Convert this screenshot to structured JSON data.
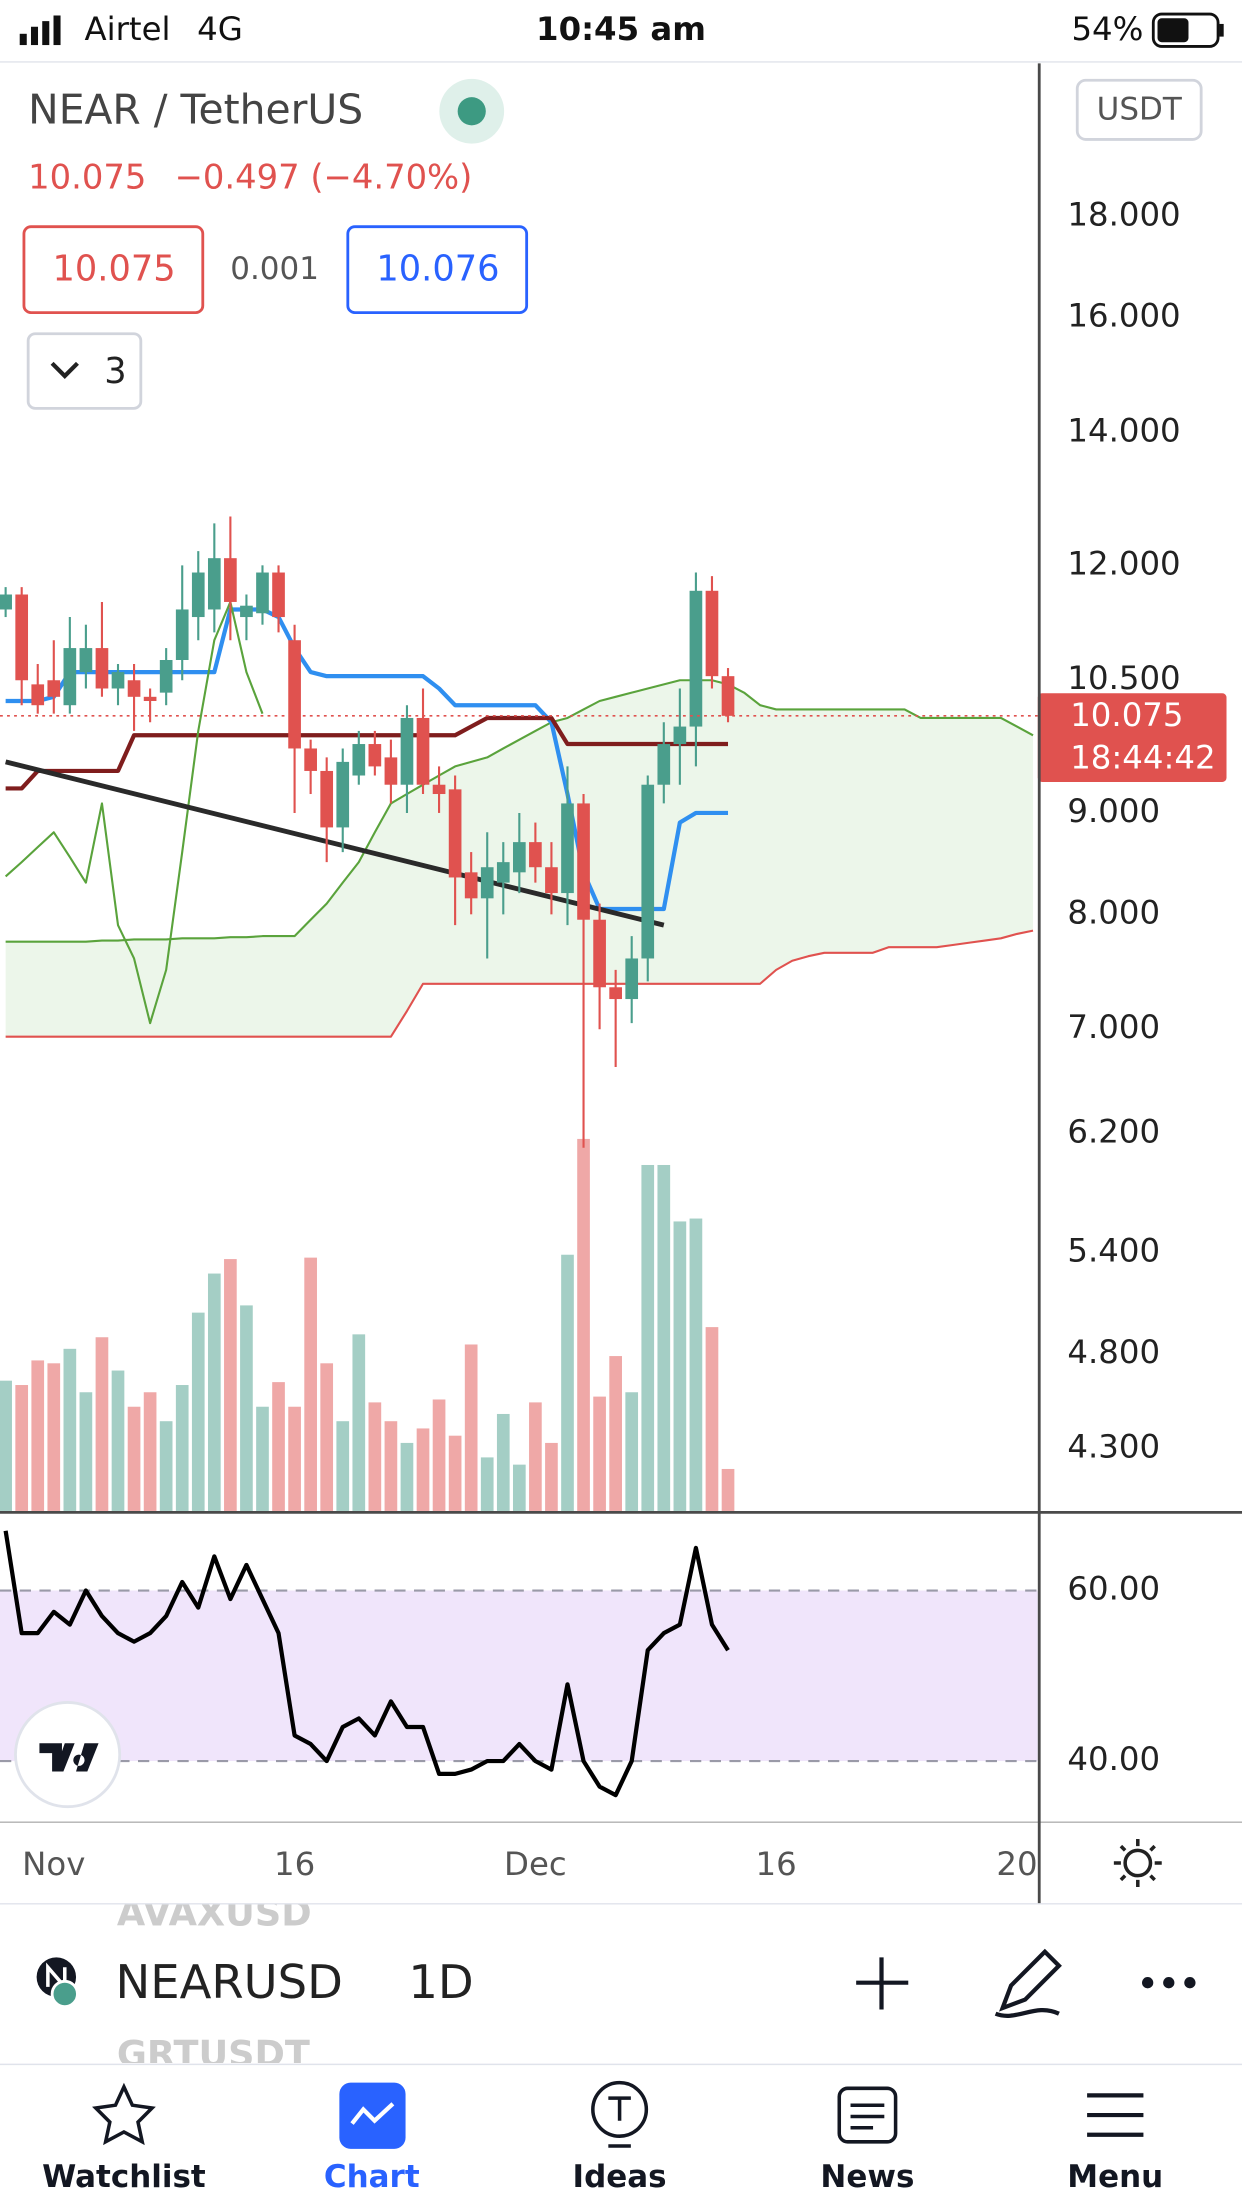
{
  "status_bar": {
    "carrier": "Airtel",
    "network": "4G",
    "time": "10:45 am",
    "battery": "54%"
  },
  "header": {
    "symbol": "NEAR / TetherUS",
    "last": "10.075",
    "change": "−0.497 (−4.70%)",
    "sell": "10.075",
    "spread": "0.001",
    "buy": "10.076",
    "indicators_count": "3",
    "currency": "USDT"
  },
  "chart": {
    "type": "candlestick",
    "log_scale": true,
    "grid": true,
    "ylim": [
      4.0,
      21.5
    ],
    "yticks": [
      {
        "value": 18,
        "label": "18.000"
      },
      {
        "value": 16,
        "label": "16.000"
      },
      {
        "value": 14,
        "label": "14.000"
      },
      {
        "value": 12,
        "label": "12.000"
      },
      {
        "value": 10.5,
        "label": "10.500"
      },
      {
        "value": 9,
        "label": "9.000"
      },
      {
        "value": 8,
        "label": "8.000"
      },
      {
        "value": 7,
        "label": "7.000"
      },
      {
        "value": 6.2,
        "label": "6.200"
      },
      {
        "value": 5.4,
        "label": "5.400"
      },
      {
        "value": 4.8,
        "label": "4.800"
      },
      {
        "value": 4.3,
        "label": "4.300"
      }
    ],
    "xticks": [
      {
        "value": 3,
        "label": "Nov"
      },
      {
        "value": 18,
        "label": "16"
      },
      {
        "value": 33,
        "label": "Dec"
      },
      {
        "value": 48,
        "label": "16"
      },
      {
        "value": 63,
        "label": "20"
      }
    ],
    "up_color": "#4a9e8c",
    "down_color": "#e0524f",
    "open": [
      11.4,
      11.6,
      10.45,
      10.5,
      10.2,
      10.6,
      10.9,
      10.4,
      10.5,
      10.3,
      10.35,
      10.75,
      11.3,
      11.4,
      12.1,
      11.3,
      11.35,
      11.9,
      11.0,
      9.7,
      9.45,
      8.85,
      9.4,
      9.75,
      9.6,
      9.3,
      10.05,
      9.3,
      9.25,
      8.4,
      8.15,
      8.3,
      8.4,
      8.7,
      8.45,
      8.2,
      9.1,
      7.95,
      7.35,
      7.25,
      7.6,
      9.3,
      9.75,
      9.95,
      11.65,
      10.55
    ],
    "high": [
      11.7,
      11.7,
      10.7,
      11.0,
      11.3,
      11.2,
      11.5,
      10.7,
      10.7,
      10.4,
      10.9,
      12.0,
      12.2,
      12.6,
      12.7,
      11.6,
      12.0,
      12.0,
      11.2,
      9.8,
      9.6,
      9.7,
      9.9,
      9.9,
      9.8,
      10.2,
      10.4,
      9.5,
      9.4,
      8.6,
      8.8,
      8.7,
      9.0,
      8.9,
      8.7,
      9.5,
      9.2,
      8.1,
      7.5,
      7.8,
      9.4,
      10.0,
      10.4,
      11.9,
      11.85,
      10.65
    ],
    "low": [
      11.3,
      10.2,
      10.1,
      10.1,
      10.1,
      10.4,
      10.3,
      10.2,
      9.9,
      10.0,
      10.2,
      10.5,
      11.0,
      11.1,
      11.0,
      11.0,
      11.2,
      11.1,
      9.0,
      9.2,
      8.5,
      8.6,
      9.3,
      9.4,
      9.1,
      9.0,
      9.2,
      9.0,
      7.9,
      8.0,
      7.6,
      8.0,
      8.2,
      8.3,
      8.0,
      7.9,
      6.1,
      7.0,
      6.7,
      7.05,
      7.4,
      9.1,
      9.3,
      9.5,
      10.4,
      10.0
    ],
    "close": [
      11.6,
      10.5,
      10.2,
      10.3,
      10.9,
      10.9,
      10.4,
      10.6,
      10.3,
      10.25,
      10.75,
      11.4,
      11.9,
      12.1,
      11.5,
      11.45,
      11.9,
      11.3,
      9.7,
      9.45,
      8.85,
      9.55,
      9.75,
      9.5,
      9.3,
      10.05,
      9.3,
      9.2,
      8.35,
      8.15,
      8.45,
      8.5,
      8.7,
      8.45,
      8.2,
      9.1,
      7.95,
      7.35,
      7.25,
      7.6,
      9.3,
      9.75,
      9.95,
      11.65,
      10.55,
      10.075
    ],
    "volume_lim": [
      0,
      1000
    ],
    "volume": [
      90,
      87,
      104,
      102,
      112,
      82,
      120,
      97,
      72,
      82,
      62,
      87,
      137,
      164,
      174,
      142,
      72,
      89,
      72,
      175,
      102,
      62,
      122,
      75,
      62,
      47,
      57,
      77,
      52,
      115,
      37,
      67,
      32,
      75,
      47,
      177,
      257,
      79,
      107,
      82,
      239,
      239,
      200,
      202,
      127,
      29
    ],
    "lines": [
      {
        "color": "#2f8ff0",
        "values": [
          10.25,
          10.25,
          10.25,
          10.3,
          10.6,
          10.6,
          10.6,
          10.6,
          10.6,
          10.6,
          10.6,
          10.6,
          10.6,
          10.6,
          11.4,
          11.4,
          11.4,
          11.3,
          10.9,
          10.6,
          10.55,
          10.55,
          10.55,
          10.55,
          10.55,
          10.55,
          10.55,
          10.4,
          10.2,
          10.2,
          10.2,
          10.2,
          10.2,
          10.2,
          10.0,
          9.2,
          8.4,
          8.05,
          8.05,
          8.05,
          8.05,
          8.05,
          8.9,
          9.0,
          9.0,
          9.0
        ]
      },
      {
        "color": "#7f1d1d",
        "values": [
          9.26,
          9.26,
          9.45,
          9.45,
          9.45,
          9.45,
          9.45,
          9.45,
          9.85,
          9.85,
          9.85,
          9.85,
          9.85,
          9.85,
          9.85,
          9.85,
          9.85,
          9.85,
          9.85,
          9.85,
          9.85,
          9.85,
          9.85,
          9.85,
          9.85,
          9.85,
          9.85,
          9.85,
          9.85,
          9.95,
          10.05,
          10.05,
          10.05,
          10.05,
          10.05,
          9.75,
          9.75,
          9.75,
          9.75,
          9.75,
          9.75,
          9.75,
          9.75,
          9.75,
          9.75,
          9.75
        ]
      },
      {
        "color": "#5aa33c",
        "values": [
          8.36,
          8.5,
          8.65,
          8.8,
          8.55,
          8.3,
          9.1,
          7.9,
          7.6,
          7.05,
          7.5,
          8.6,
          9.9,
          11.0,
          11.5,
          10.6,
          10.1
        ]
      }
    ],
    "span_a": {
      "color": "#5aa33c",
      "values": [
        7.75,
        7.75,
        7.75,
        7.75,
        7.75,
        7.75,
        7.76,
        7.76,
        7.77,
        7.77,
        7.77,
        7.78,
        7.78,
        7.78,
        7.79,
        7.79,
        7.8,
        7.8,
        7.8,
        7.95,
        8.1,
        8.3,
        8.5,
        8.8,
        9.1,
        9.2,
        9.3,
        9.4,
        9.5,
        9.55,
        9.6,
        9.7,
        9.8,
        9.9,
        10.0,
        10.05,
        10.15,
        10.25,
        10.3,
        10.35,
        10.4,
        10.45,
        10.5,
        10.5,
        10.5,
        10.45,
        10.35,
        10.2,
        10.15,
        10.15,
        10.15,
        10.15,
        10.15,
        10.15,
        10.15,
        10.15,
        10.15,
        10.05,
        10.05,
        10.05,
        10.05,
        10.05,
        10.05,
        9.95,
        9.85
      ]
    },
    "span_b": {
      "color": "#e0524f",
      "values": [
        6.94,
        6.94,
        6.94,
        6.94,
        6.94,
        6.94,
        6.94,
        6.94,
        6.94,
        6.94,
        6.94,
        6.94,
        6.94,
        6.94,
        6.94,
        6.94,
        6.94,
        6.94,
        6.94,
        6.94,
        6.94,
        6.94,
        6.94,
        6.94,
        6.94,
        7.15,
        7.38,
        7.38,
        7.38,
        7.38,
        7.38,
        7.38,
        7.38,
        7.38,
        7.38,
        7.38,
        7.38,
        7.38,
        7.38,
        7.38,
        7.38,
        7.38,
        7.38,
        7.38,
        7.38,
        7.38,
        7.38,
        7.38,
        7.5,
        7.58,
        7.62,
        7.65,
        7.65,
        7.65,
        7.65,
        7.7,
        7.7,
        7.7,
        7.7,
        7.72,
        7.74,
        7.76,
        7.78,
        7.82,
        7.85
      ]
    },
    "cloud_color": "#e9f4e6",
    "trend_line": {
      "color": "#2a2a2a",
      "x": [
        0,
        41
      ],
      "values": [
        9.55,
        7.9
      ]
    },
    "price_label": {
      "value": 10.075,
      "label": "10.075"
    },
    "countdown": "18:44:42",
    "rsi_lim": [
      33,
      69
    ],
    "rsi_ticks": [
      {
        "value": 60,
        "label": "60.00"
      },
      {
        "value": 40,
        "label": "40.00"
      }
    ],
    "rsi_band_color": "#f0e5fb",
    "rsi": [
      67,
      55,
      55,
      57.5,
      56,
      60,
      57,
      55,
      54,
      55,
      57,
      61,
      58,
      64,
      59,
      63,
      59,
      55,
      43,
      42,
      40,
      44,
      45,
      43,
      47,
      44,
      44,
      38.5,
      38.5,
      39,
      40,
      40,
      42,
      40,
      39,
      49,
      40,
      37,
      36,
      40,
      53,
      55,
      56,
      65,
      56,
      53
    ]
  },
  "toolbar": {
    "prev_symbol": "AVAXUSD",
    "symbol": "NEARUSD",
    "interval": "1D",
    "next_symbol": "GRTUSDT"
  },
  "tabs": [
    "Watchlist",
    "Chart",
    "Ideas",
    "News",
    "Menu"
  ]
}
